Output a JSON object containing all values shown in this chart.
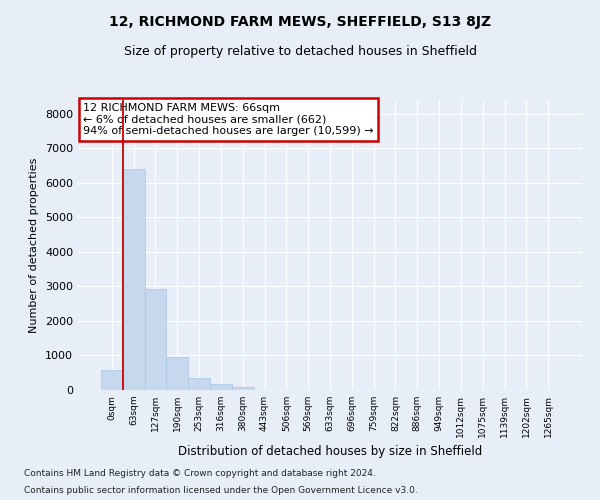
{
  "title_line1": "12, RICHMOND FARM MEWS, SHEFFIELD, S13 8JZ",
  "title_line2": "Size of property relative to detached houses in Sheffield",
  "xlabel": "Distribution of detached houses by size in Sheffield",
  "ylabel": "Number of detached properties",
  "categories": [
    "0sqm",
    "63sqm",
    "127sqm",
    "190sqm",
    "253sqm",
    "316sqm",
    "380sqm",
    "443sqm",
    "506sqm",
    "569sqm",
    "633sqm",
    "696sqm",
    "759sqm",
    "822sqm",
    "886sqm",
    "949sqm",
    "1012sqm",
    "1075sqm",
    "1139sqm",
    "1202sqm",
    "1265sqm"
  ],
  "values": [
    570,
    6400,
    2930,
    950,
    360,
    170,
    90,
    0,
    0,
    0,
    0,
    0,
    0,
    0,
    0,
    0,
    0,
    0,
    0,
    0,
    0
  ],
  "bar_color": "#c5d8ee",
  "bar_edge_color": "#a8c4e0",
  "vline_x_index": 1,
  "annotation_text": "12 RICHMOND FARM MEWS: 66sqm\n← 6% of detached houses are smaller (662)\n94% of semi-detached houses are larger (10,599) →",
  "annotation_box_color": "white",
  "annotation_box_edge_color": "#cc0000",
  "vline_color": "#cc0000",
  "ylim": [
    0,
    8400
  ],
  "yticks": [
    0,
    1000,
    2000,
    3000,
    4000,
    5000,
    6000,
    7000,
    8000
  ],
  "background_color": "#e8eef8",
  "grid_color": "white",
  "title_fontsize": 10,
  "subtitle_fontsize": 9,
  "footer_line1": "Contains HM Land Registry data © Crown copyright and database right 2024.",
  "footer_line2": "Contains public sector information licensed under the Open Government Licence v3.0."
}
